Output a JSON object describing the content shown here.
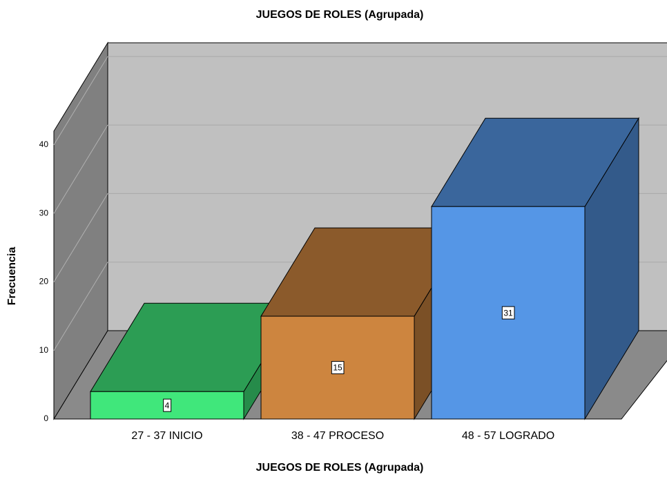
{
  "chart_data": {
    "type": "bar3d",
    "title": "JUEGOS DE ROLES (Agrupada)",
    "xlabel": "JUEGOS DE ROLES (Agrupada)",
    "ylabel": "Frecuencia",
    "categories": [
      "27 - 37 INICIO",
      "38 - 47 PROCESO",
      "48 - 57 LOGRADO"
    ],
    "values": [
      4,
      15,
      31
    ],
    "colors": [
      "#40e77b",
      "#cd853f",
      "#5596e6"
    ],
    "ylim": [
      0,
      42
    ],
    "yticks": [
      0,
      10,
      20,
      30,
      40
    ],
    "grid": true
  }
}
